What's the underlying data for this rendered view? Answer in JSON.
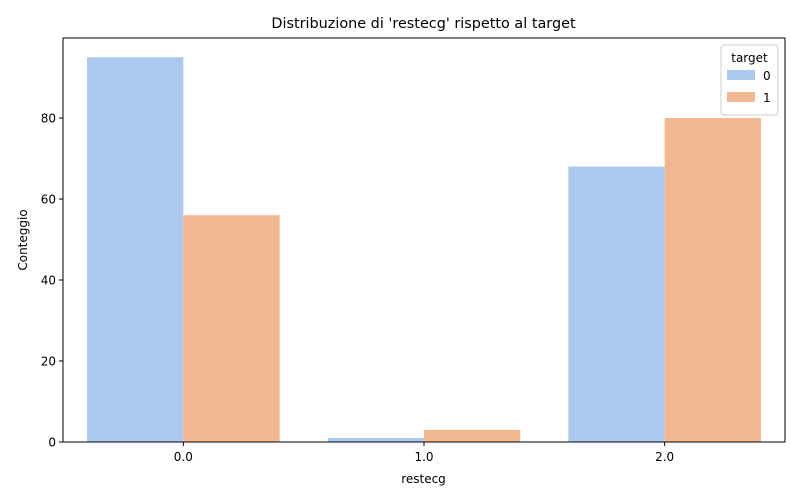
{
  "chart_data": {
    "type": "bar",
    "title": "Distribuzione di 'restecg' rispetto al target",
    "xlabel": "restecg",
    "ylabel": "Conteggio",
    "categories": [
      "0.0",
      "1.0",
      "2.0"
    ],
    "series": [
      {
        "name": "0",
        "values": [
          95,
          1,
          68
        ],
        "color": "#abc9ef"
      },
      {
        "name": "1",
        "values": [
          56,
          3,
          80
        ],
        "color": "#f0b790"
      }
    ],
    "ylim": [
      0,
      99.75
    ],
    "yticks": [
      0,
      20,
      40,
      60,
      80
    ],
    "legend": {
      "title": "target",
      "placement": "top-right"
    },
    "grid": false
  }
}
